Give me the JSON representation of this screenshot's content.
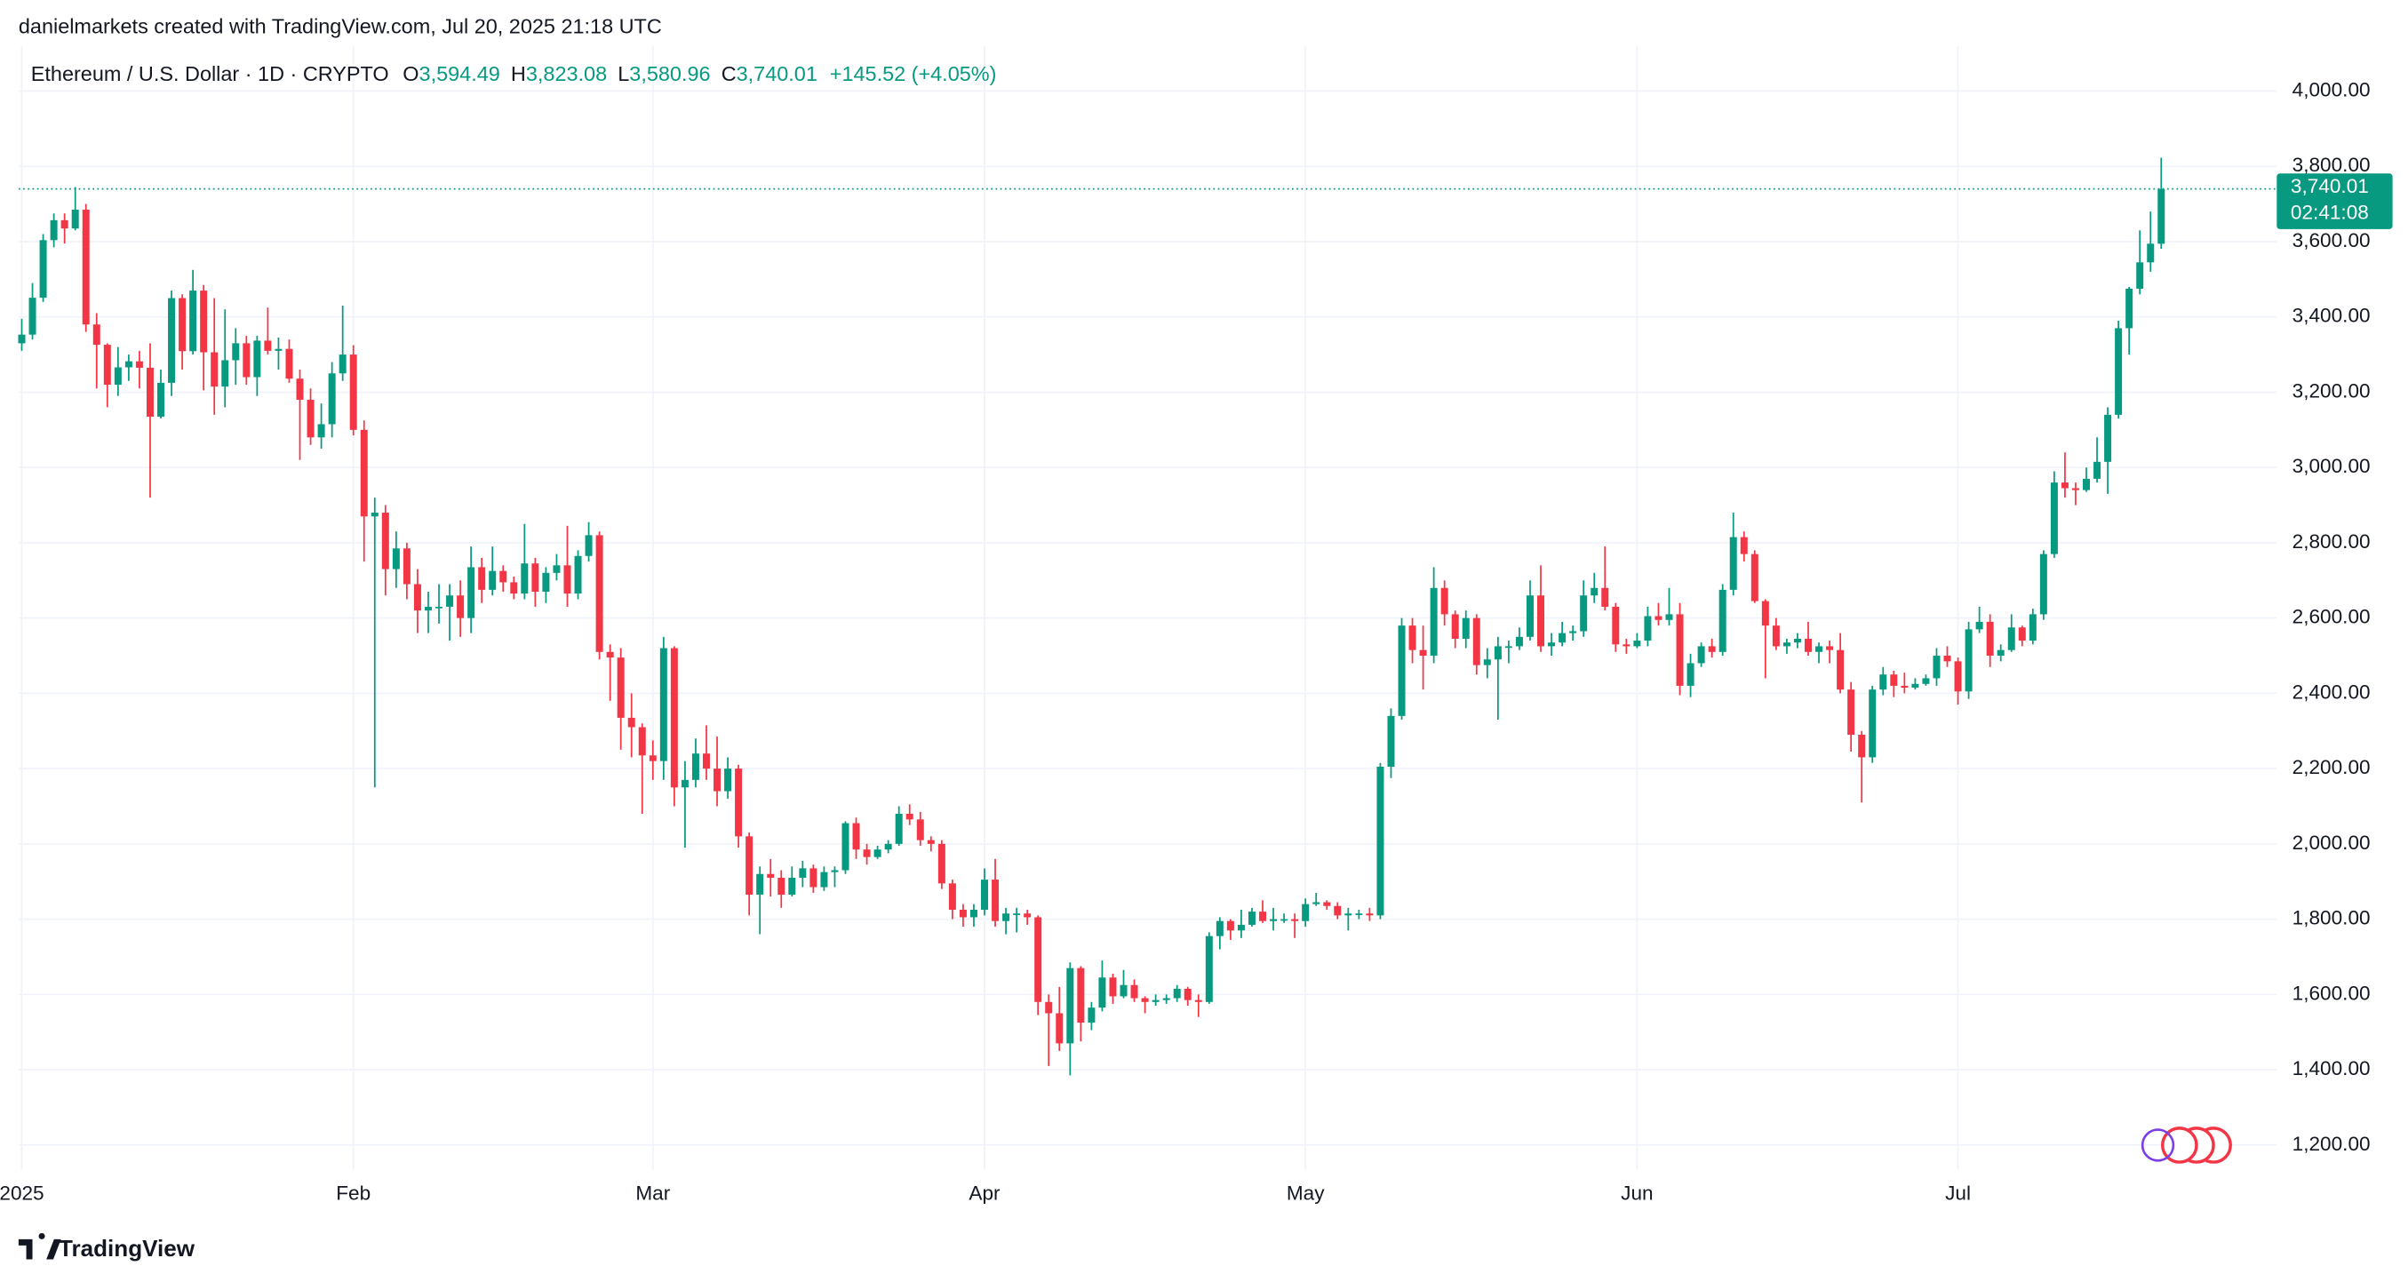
{
  "header": {
    "attribution": "danielmarkets created with TradingView.com, Jul 20, 2025 21:18 UTC",
    "symbol": "Ethereum / U.S. Dollar · 1D · CRYPTO",
    "ohlc": [
      {
        "key": "O",
        "value": "3,594.49"
      },
      {
        "key": "H",
        "value": "3,823.08"
      },
      {
        "key": "L",
        "value": "3,580.96"
      },
      {
        "key": "C",
        "value": "3,740.01"
      }
    ],
    "change": "+145.52 (+4.05%)"
  },
  "chart_data": {
    "type": "candlestick",
    "open": [
      3330,
      3353,
      3451,
      3604,
      3657,
      3635,
      3685,
      3380,
      3326,
      3220,
      3266,
      3282,
      3265,
      3135,
      3225,
      3450,
      3309,
      3470,
      3306,
      3215,
      3285,
      3330,
      3240,
      3337,
      3310,
      3315,
      3236,
      3180,
      3080,
      3115,
      3250,
      3300,
      3100,
      2870,
      2880,
      2730,
      2785,
      2690,
      2620,
      2630,
      2630,
      2660,
      2600,
      2735,
      2675,
      2725,
      2695,
      2665,
      2745,
      2670,
      2720,
      2740,
      2665,
      2765,
      2820,
      2510,
      2495,
      2335,
      2310,
      2235,
      2220,
      2520,
      2150,
      2170,
      2240,
      2200,
      2140,
      2200,
      2020,
      1865,
      1920,
      1910,
      1865,
      1910,
      1935,
      1885,
      1925,
      1930,
      2055,
      1985,
      1965,
      1985,
      2000,
      2080,
      2065,
      2010,
      2000,
      1895,
      1825,
      1805,
      1825,
      1905,
      1795,
      1815,
      1815,
      1805,
      1580,
      1550,
      1470,
      1670,
      1525,
      1565,
      1645,
      1595,
      1625,
      1590,
      1580,
      1585,
      1590,
      1615,
      1585,
      1580,
      1755,
      1795,
      1770,
      1785,
      1820,
      1795,
      1800,
      1800,
      1795,
      1840,
      1845,
      1835,
      1810,
      1815,
      1815,
      1810,
      2205,
      2340,
      2580,
      2515,
      2500,
      2680,
      2610,
      2545,
      2600,
      2475,
      2490,
      2525,
      2525,
      2550,
      2660,
      2525,
      2535,
      2560,
      2565,
      2660,
      2680,
      2630,
      2530,
      2525,
      2540,
      2605,
      2595,
      2610,
      2420,
      2480,
      2525,
      2510,
      2675,
      2815,
      2770,
      2645,
      2580,
      2525,
      2535,
      2545,
      2510,
      2525,
      2515,
      2410,
      2290,
      2230,
      2410,
      2450,
      2420,
      2415,
      2425,
      2440,
      2500,
      2485,
      2405,
      2570,
      2590,
      2500,
      2515,
      2575,
      2540,
      2610,
      2770,
      2960,
      2945,
      2940,
      2970,
      3015,
      3140,
      3370,
      3475,
      3545,
      3594.49
    ],
    "high": [
      3395,
      3490,
      3620,
      3675,
      3675,
      3745,
      3700,
      3410,
      3330,
      3320,
      3300,
      3310,
      3330,
      3260,
      3470,
      3460,
      3525,
      3485,
      3450,
      3420,
      3370,
      3350,
      3350,
      3425,
      3345,
      3340,
      3260,
      3210,
      3170,
      3280,
      3430,
      3325,
      3125,
      2920,
      2900,
      2830,
      2800,
      2730,
      2670,
      2690,
      2690,
      2700,
      2790,
      2760,
      2790,
      2740,
      2710,
      2850,
      2760,
      2735,
      2770,
      2845,
      2780,
      2855,
      2830,
      2530,
      2520,
      2400,
      2320,
      2275,
      2550,
      2525,
      2220,
      2280,
      2315,
      2285,
      2230,
      2210,
      2030,
      1940,
      1960,
      1930,
      1940,
      1955,
      1945,
      1940,
      1940,
      2060,
      2070,
      2000,
      1995,
      2010,
      2100,
      2105,
      2085,
      2020,
      2010,
      1905,
      1840,
      1840,
      1935,
      1960,
      1830,
      1830,
      1825,
      1810,
      1600,
      1620,
      1685,
      1675,
      1580,
      1690,
      1655,
      1665,
      1640,
      1595,
      1600,
      1600,
      1625,
      1620,
      1600,
      1765,
      1805,
      1800,
      1825,
      1830,
      1850,
      1830,
      1815,
      1815,
      1855,
      1870,
      1850,
      1845,
      1830,
      1825,
      1830,
      2215,
      2360,
      2600,
      2600,
      2580,
      2735,
      2700,
      2620,
      2620,
      2610,
      2520,
      2550,
      2540,
      2575,
      2700,
      2740,
      2560,
      2590,
      2580,
      2700,
      2720,
      2790,
      2640,
      2545,
      2560,
      2630,
      2640,
      2680,
      2640,
      2505,
      2535,
      2545,
      2690,
      2880,
      2830,
      2780,
      2650,
      2600,
      2545,
      2560,
      2590,
      2535,
      2540,
      2560,
      2430,
      2300,
      2420,
      2470,
      2460,
      2455,
      2440,
      2450,
      2520,
      2525,
      2495,
      2590,
      2630,
      2610,
      2530,
      2610,
      2580,
      2625,
      2780,
      2990,
      3040,
      2960,
      3000,
      3080,
      3160,
      3390,
      3480,
      3630,
      3680,
      3823.08
    ],
    "low": [
      3310,
      3340,
      3440,
      3585,
      3595,
      3630,
      3360,
      3210,
      3160,
      3190,
      3230,
      3210,
      2920,
      3130,
      3190,
      3260,
      3300,
      3205,
      3140,
      3160,
      3220,
      3220,
      3190,
      3300,
      3260,
      3225,
      3020,
      3060,
      3050,
      3080,
      3230,
      3085,
      2750,
      2150,
      2660,
      2680,
      2650,
      2560,
      2560,
      2585,
      2540,
      2550,
      2560,
      2640,
      2660,
      2670,
      2650,
      2650,
      2630,
      2640,
      2700,
      2630,
      2650,
      2750,
      2490,
      2380,
      2250,
      2230,
      2080,
      2170,
      2170,
      2100,
      1990,
      2150,
      2170,
      2100,
      2120,
      1990,
      1810,
      1760,
      1860,
      1830,
      1860,
      1885,
      1870,
      1875,
      1885,
      1920,
      1960,
      1945,
      1960,
      1975,
      1995,
      2050,
      1995,
      1980,
      1880,
      1800,
      1780,
      1780,
      1810,
      1780,
      1760,
      1765,
      1785,
      1545,
      1410,
      1450,
      1385,
      1475,
      1505,
      1555,
      1575,
      1590,
      1580,
      1550,
      1570,
      1575,
      1580,
      1570,
      1540,
      1575,
      1720,
      1745,
      1750,
      1780,
      1790,
      1770,
      1790,
      1750,
      1780,
      1835,
      1825,
      1800,
      1770,
      1800,
      1795,
      1800,
      2175,
      2330,
      2480,
      2410,
      2480,
      2580,
      2520,
      2520,
      2450,
      2440,
      2330,
      2480,
      2515,
      2540,
      2510,
      2500,
      2525,
      2540,
      2550,
      2640,
      2620,
      2510,
      2505,
      2520,
      2525,
      2580,
      2580,
      2395,
      2390,
      2470,
      2495,
      2500,
      2660,
      2750,
      2640,
      2440,
      2515,
      2505,
      2520,
      2500,
      2480,
      2480,
      2400,
      2245,
      2110,
      2215,
      2395,
      2390,
      2400,
      2410,
      2420,
      2420,
      2470,
      2370,
      2385,
      2560,
      2470,
      2485,
      2510,
      2525,
      2530,
      2595,
      2760,
      2920,
      2900,
      2935,
      2960,
      2930,
      3130,
      3300,
      3460,
      3520,
      3580.96
    ],
    "close": [
      3353,
      3451,
      3604,
      3657,
      3635,
      3685,
      3380,
      3326,
      3220,
      3266,
      3282,
      3265,
      3135,
      3225,
      3450,
      3309,
      3470,
      3306,
      3215,
      3285,
      3330,
      3240,
      3337,
      3310,
      3315,
      3236,
      3180,
      3080,
      3115,
      3250,
      3300,
      3100,
      2870,
      2880,
      2730,
      2785,
      2690,
      2620,
      2630,
      2630,
      2660,
      2600,
      2735,
      2675,
      2725,
      2695,
      2665,
      2745,
      2670,
      2720,
      2740,
      2665,
      2765,
      2820,
      2510,
      2495,
      2335,
      2310,
      2235,
      2220,
      2520,
      2150,
      2170,
      2240,
      2200,
      2140,
      2200,
      2020,
      1865,
      1920,
      1910,
      1865,
      1910,
      1935,
      1885,
      1925,
      1930,
      2055,
      1985,
      1965,
      1985,
      2000,
      2080,
      2065,
      2010,
      2000,
      1895,
      1825,
      1805,
      1825,
      1905,
      1795,
      1815,
      1815,
      1805,
      1580,
      1550,
      1470,
      1670,
      1525,
      1565,
      1645,
      1595,
      1625,
      1590,
      1580,
      1585,
      1590,
      1615,
      1585,
      1580,
      1755,
      1795,
      1770,
      1785,
      1820,
      1795,
      1800,
      1800,
      1795,
      1840,
      1845,
      1835,
      1810,
      1815,
      1815,
      1810,
      2205,
      2340,
      2580,
      2515,
      2500,
      2680,
      2610,
      2545,
      2600,
      2475,
      2490,
      2525,
      2525,
      2550,
      2660,
      2525,
      2535,
      2560,
      2565,
      2660,
      2680,
      2630,
      2530,
      2525,
      2540,
      2605,
      2595,
      2610,
      2420,
      2480,
      2525,
      2510,
      2675,
      2815,
      2770,
      2645,
      2580,
      2525,
      2535,
      2545,
      2510,
      2525,
      2515,
      2410,
      2290,
      2230,
      2410,
      2450,
      2420,
      2415,
      2425,
      2440,
      2500,
      2485,
      2405,
      2570,
      2590,
      2500,
      2515,
      2575,
      2540,
      2610,
      2770,
      2960,
      2945,
      2940,
      2970,
      3015,
      3140,
      3370,
      3475,
      3545,
      3594.49,
      3740.01
    ],
    "up_color": "#089981",
    "down_color": "#f23645",
    "xlim": [
      -0.3,
      210.8
    ],
    "xticks": [
      {
        "value": 0,
        "label": "2025"
      },
      {
        "value": 31,
        "label": "Feb"
      },
      {
        "value": 59,
        "label": "Mar"
      },
      {
        "value": 90,
        "label": "Apr"
      },
      {
        "value": 120,
        "label": "May"
      },
      {
        "value": 151,
        "label": "Jun"
      },
      {
        "value": 181,
        "label": "Jul"
      }
    ],
    "ylim": [
      1134,
      4119
    ],
    "yticks": [
      {
        "value": 1200,
        "label": "1,200.00"
      },
      {
        "value": 1400,
        "label": "1,400.00"
      },
      {
        "value": 1600,
        "label": "1,600.00"
      },
      {
        "value": 1800,
        "label": "1,800.00"
      },
      {
        "value": 2000,
        "label": "2,000.00"
      },
      {
        "value": 2200,
        "label": "2,200.00"
      },
      {
        "value": 2400,
        "label": "2,400.00"
      },
      {
        "value": 2600,
        "label": "2,600.00"
      },
      {
        "value": 2800,
        "label": "2,800.00"
      },
      {
        "value": 3000,
        "label": "3,000.00"
      },
      {
        "value": 3200,
        "label": "3,200.00"
      },
      {
        "value": 3400,
        "label": "3,400.00"
      },
      {
        "value": 3600,
        "label": "3,600.00"
      },
      {
        "value": 3800,
        "label": "3,800.00"
      },
      {
        "value": 4000,
        "label": "4,000.00"
      }
    ],
    "grid": true,
    "last_price": {
      "value": 3740.01,
      "label": "3,740.01",
      "countdown": "02:41:08"
    }
  },
  "footer": {
    "brand": "TradingView"
  }
}
